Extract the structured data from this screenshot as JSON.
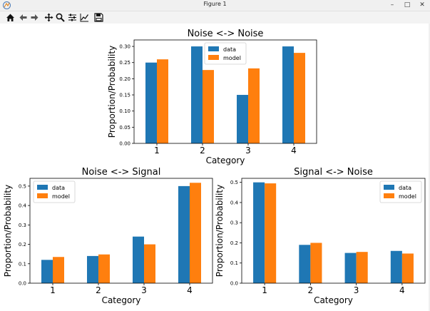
{
  "window": {
    "title": "Figure 1",
    "minimize_glyph": "–",
    "maximize_glyph": "□",
    "close_glyph": "✕"
  },
  "toolbar": {
    "buttons": [
      {
        "name": "home-icon"
      },
      {
        "name": "back-icon"
      },
      {
        "name": "forward-icon"
      },
      {
        "name": "pan-icon"
      },
      {
        "name": "zoom-icon"
      },
      {
        "name": "configure-subplots-icon"
      },
      {
        "name": "edit-axis-icon"
      },
      {
        "name": "save-icon"
      }
    ]
  },
  "colors": {
    "data": "#1f77b4",
    "model": "#ff7f0e"
  },
  "chart_data": [
    {
      "type": "bar",
      "title": "Noise <-> Noise",
      "xlabel": "Category",
      "ylabel": "Proportion/Probability",
      "categories": [
        "1",
        "2",
        "3",
        "4"
      ],
      "series": [
        {
          "name": "data",
          "values": [
            0.25,
            0.3,
            0.15,
            0.3
          ]
        },
        {
          "name": "model",
          "values": [
            0.26,
            0.227,
            0.232,
            0.28
          ]
        }
      ],
      "ylim": [
        0,
        0.32
      ],
      "yticks": [
        "0.00",
        "0.05",
        "0.10",
        "0.15",
        "0.20",
        "0.25",
        "0.30"
      ],
      "legend": "upper-center",
      "grid": false
    },
    {
      "type": "bar",
      "title": "Noise <-> Signal",
      "xlabel": "Category",
      "ylabel": "Proportion/Probability",
      "categories": [
        "1",
        "2",
        "3",
        "4"
      ],
      "series": [
        {
          "name": "data",
          "values": [
            0.12,
            0.14,
            0.24,
            0.5
          ]
        },
        {
          "name": "model",
          "values": [
            0.135,
            0.148,
            0.2,
            0.517
          ]
        }
      ],
      "ylim": [
        0,
        0.54
      ],
      "yticks": [
        "0.0",
        "0.1",
        "0.2",
        "0.3",
        "0.4",
        "0.5"
      ],
      "legend": "upper-left",
      "grid": false
    },
    {
      "type": "bar",
      "title": "Signal <-> Noise",
      "xlabel": "Category",
      "ylabel": "Proportion/Probability",
      "categories": [
        "1",
        "2",
        "3",
        "4"
      ],
      "series": [
        {
          "name": "data",
          "values": [
            0.5,
            0.19,
            0.15,
            0.16
          ]
        },
        {
          "name": "model",
          "values": [
            0.495,
            0.2,
            0.155,
            0.147
          ]
        }
      ],
      "ylim": [
        0,
        0.52
      ],
      "yticks": [
        "0.0",
        "0.1",
        "0.2",
        "0.3",
        "0.4",
        "0.5"
      ],
      "legend": "upper-right",
      "grid": false
    }
  ]
}
